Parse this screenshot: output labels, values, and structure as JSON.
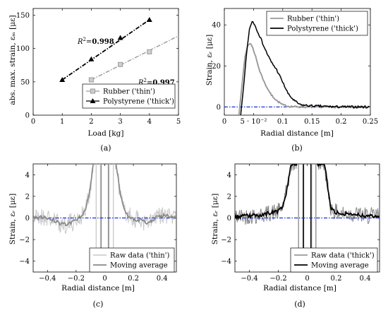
{
  "panels": [
    {
      "id": "a",
      "caption": "(a)",
      "type": "scatter-line",
      "xlabel": "Load [kg]",
      "ylabel": "abs. max. strain, εₘ [με]",
      "xlim": [
        0,
        5
      ],
      "ylim": [
        0,
        160
      ],
      "xticks": [
        "0",
        "1",
        "2",
        "3",
        "4",
        "5"
      ],
      "yticks": [
        "0",
        "50",
        "100",
        "150"
      ],
      "legend_position": "bottom-right",
      "series": [
        {
          "name": "Rubber ('thin')",
          "color": "#999999",
          "marker": "square",
          "dash": "dash-dot",
          "x": [
            2,
            3,
            4
          ],
          "y": [
            53,
            76,
            95
          ],
          "fit_x": [
            2,
            5
          ],
          "fit_y": [
            53,
            119
          ]
        },
        {
          "name": "Polystyrene ('thick')",
          "color": "#000000",
          "marker": "triangle",
          "dash": "dash-dot",
          "x": [
            1,
            2,
            3,
            4
          ],
          "y": [
            53,
            84,
            116,
            143
          ],
          "fit_x": [
            1,
            4
          ],
          "fit_y": [
            53,
            143
          ]
        }
      ],
      "annotations": [
        {
          "prefix": "R",
          "sup": "2",
          "eq": "=",
          "value": "0.998",
          "series": "Polystyrene ('thick')"
        },
        {
          "prefix": "R",
          "sup": "2",
          "eq": "=",
          "value": "0.997",
          "series": "Rubber ('thin')"
        }
      ]
    },
    {
      "id": "b",
      "caption": "(b)",
      "type": "line",
      "xlabel": "Radial distance [m]",
      "ylabel": "Strain, εᵣ [με]",
      "xlim": [
        0,
        0.25
      ],
      "ylim": [
        -4,
        48
      ],
      "xticks": [
        "0",
        "5 · 10⁻²",
        "0.1",
        "0.15",
        "0.2",
        "0.25"
      ],
      "yticks": [
        "0",
        "20",
        "40"
      ],
      "legend_position": "top-right",
      "baseline": 0,
      "series": [
        {
          "name": "Rubber ('thin')",
          "color": "#999999",
          "x": [
            0.025,
            0.03,
            0.035,
            0.04,
            0.045,
            0.05,
            0.055,
            0.06,
            0.07,
            0.08,
            0.09,
            0.1,
            0.11,
            0.13,
            0.15,
            0.2,
            0.25
          ],
          "y": [
            -4,
            10,
            24,
            30,
            31,
            28,
            23,
            18,
            11,
            6,
            3,
            1,
            0.3,
            0,
            0,
            0,
            0
          ]
        },
        {
          "name": "Polystyrene ('thick')",
          "color": "#000000",
          "x": [
            0.028,
            0.033,
            0.038,
            0.043,
            0.048,
            0.052,
            0.06,
            0.07,
            0.08,
            0.09,
            0.1,
            0.11,
            0.12,
            0.13,
            0.15,
            0.2,
            0.25
          ],
          "y": [
            -4,
            10,
            26,
            38,
            42,
            40,
            35,
            28,
            22,
            18,
            12,
            6,
            3,
            1,
            0.5,
            0,
            0
          ]
        }
      ]
    },
    {
      "id": "c",
      "caption": "(c)",
      "type": "line",
      "xlabel": "Radial distance [m]",
      "ylabel": "Strain, εᵣ [με]",
      "xlim": [
        -0.5,
        0.5
      ],
      "ylim": [
        -5,
        5
      ],
      "xticks": [
        "−0.4",
        "−0.2",
        "0",
        "0.2",
        "0.4"
      ],
      "yticks": [
        "−4",
        "−2",
        "0",
        "2",
        "4"
      ],
      "legend_position": "bottom-right",
      "baseline": 0,
      "series": [
        {
          "name": "Raw data ('thin')",
          "color": "#c8c8c8"
        },
        {
          "name": "Moving average",
          "color": "#888888",
          "x": [
            -0.5,
            -0.42,
            -0.35,
            -0.3,
            -0.25,
            -0.2,
            -0.17,
            -0.14,
            -0.12,
            -0.1,
            -0.08,
            -0.07,
            0.07,
            0.08,
            0.1,
            0.12,
            0.14,
            0.17,
            0.2,
            0.25,
            0.3,
            0.35,
            0.4,
            0.5
          ],
          "y": [
            0,
            0.1,
            -0.3,
            -0.6,
            -0.5,
            -0.2,
            0.1,
            0.6,
            1.5,
            3,
            5,
            5,
            5,
            5,
            3,
            1.5,
            0.6,
            0.2,
            -0.1,
            -0.2,
            -0.5,
            0,
            0.2,
            0.1
          ]
        }
      ]
    },
    {
      "id": "d",
      "caption": "(d)",
      "type": "line",
      "xlabel": "Radial distance [m]",
      "ylabel": "Strain, εᵣ [με]",
      "xlim": [
        -0.5,
        0.5
      ],
      "ylim": [
        -5,
        5
      ],
      "xticks": [
        "−0.4",
        "−0.2",
        "0",
        "0.2",
        "0.4"
      ],
      "yticks": [
        "−4",
        "−2",
        "0",
        "2",
        "4"
      ],
      "legend_position": "bottom-right",
      "baseline": 0,
      "series": [
        {
          "name": "Raw data ('thick')",
          "color": "#888888"
        },
        {
          "name": "Moving average",
          "color": "#000000",
          "x": [
            -0.5,
            -0.4,
            -0.3,
            -0.25,
            -0.2,
            -0.17,
            -0.15,
            -0.13,
            -0.11,
            -0.1,
            0.1,
            0.12,
            0.14,
            0.16,
            0.2,
            0.25,
            0.3,
            0.35,
            0.4,
            0.5
          ],
          "y": [
            0.1,
            0.2,
            0.3,
            0.5,
            0.6,
            1,
            2,
            3.5,
            5,
            5,
            5,
            5,
            3,
            1,
            0.5,
            0.4,
            0.4,
            0.3,
            0.2,
            0.2
          ]
        }
      ]
    }
  ]
}
